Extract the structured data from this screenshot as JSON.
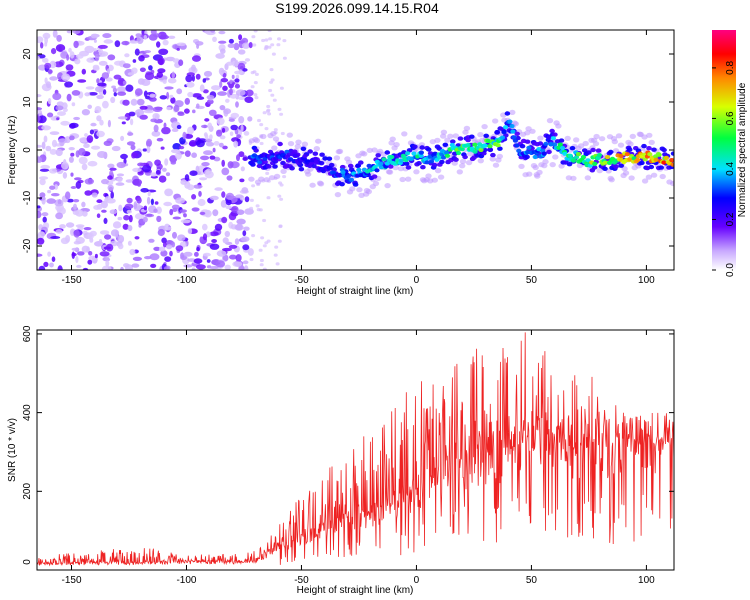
{
  "title": "S199.2026.099.14.15.R04",
  "chart_data": [
    {
      "type": "heatmap",
      "name": "spectrogram",
      "xlabel": "Height of straight line (km)",
      "ylabel": "Frequency (Hz)",
      "xlim": [
        -165,
        112
      ],
      "ylim": [
        -25,
        25
      ],
      "xticks": [
        -150,
        -100,
        -50,
        0,
        50,
        100
      ],
      "yticks": [
        -20,
        -10,
        0,
        10,
        20
      ],
      "colorbar": {
        "label": "Normalized spectral amplitude",
        "range": [
          0,
          0.95
        ],
        "ticks": [
          "0.0",
          "0.2",
          "0.4",
          "0.6",
          "0.8"
        ],
        "tick_values": [
          0,
          0.2,
          0.4,
          0.6,
          0.8
        ]
      },
      "ridge": {
        "x": [
          -72,
          -65,
          -60,
          -55,
          -50,
          -45,
          -40,
          -35,
          -30,
          -25,
          -20,
          -15,
          -10,
          -5,
          0,
          5,
          10,
          15,
          20,
          25,
          30,
          35,
          38,
          40,
          42,
          45,
          50,
          55,
          58,
          62,
          65,
          70,
          75,
          80,
          85,
          90,
          95,
          100,
          105,
          110
        ],
        "freq": [
          -2,
          -1.5,
          -1,
          -1.5,
          -2,
          -2.5,
          -3.5,
          -4.5,
          -5.5,
          -5,
          -4,
          -3,
          -2,
          -1.5,
          -1,
          -2,
          -1,
          0,
          0.5,
          0.5,
          1,
          1.5,
          3,
          6,
          3.5,
          0,
          -0.5,
          -0.5,
          2,
          0.5,
          -1,
          -1.5,
          -2.5,
          -2,
          -2,
          -1.5,
          -1.5,
          -1.5,
          -1.5,
          -2.5
        ],
        "amplitude": [
          0.4,
          0.35,
          0.35,
          0.35,
          0.3,
          0.3,
          0.35,
          0.35,
          0.45,
          0.45,
          0.5,
          0.5,
          0.5,
          0.55,
          0.55,
          0.5,
          0.5,
          0.6,
          0.65,
          0.65,
          0.65,
          0.65,
          0.5,
          0.35,
          0.45,
          0.4,
          0.4,
          0.45,
          0.4,
          0.55,
          0.6,
          0.65,
          0.7,
          0.75,
          0.8,
          0.85,
          0.85,
          0.9,
          0.9,
          0.95
        ]
      },
      "noise_region_x": [
        -165,
        -72
      ]
    },
    {
      "type": "line",
      "name": "snr",
      "xlabel": "Height of straight line (km)",
      "ylabel": "SNR (10 * v/v)",
      "xlim": [
        -165,
        112
      ],
      "ylim": [
        0,
        610
      ],
      "xticks": [
        -150,
        -100,
        -50,
        0,
        50,
        100
      ],
      "yticks": [
        0,
        200,
        400,
        600
      ],
      "color": "#ee2222",
      "envelope": {
        "x": [
          -165,
          -120,
          -100,
          -80,
          -70,
          -65,
          -60,
          -50,
          -40,
          -30,
          -20,
          -10,
          0,
          10,
          20,
          30,
          40,
          50,
          60,
          70,
          80,
          90,
          100,
          112
        ],
        "baseline": [
          15,
          18,
          20,
          20,
          22,
          40,
          60,
          80,
          100,
          120,
          140,
          170,
          200,
          240,
          270,
          280,
          300,
          310,
          310,
          310,
          310,
          315,
          320,
          320
        ],
        "peak": [
          35,
          60,
          40,
          40,
          50,
          90,
          130,
          190,
          250,
          300,
          360,
          420,
          480,
          520,
          560,
          580,
          600,
          610,
          600,
          560,
          470,
          420,
          380,
          360
        ]
      }
    }
  ]
}
